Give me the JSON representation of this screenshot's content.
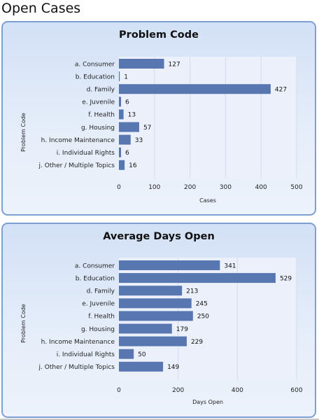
{
  "page": {
    "title": "Open Cases"
  },
  "colors": {
    "bar": "#5877b1",
    "plot_background": "#ebf0fa",
    "grid": "#d4dced",
    "panel_border": "#7d9fd4"
  },
  "chart_data": [
    {
      "type": "bar",
      "orientation": "horizontal",
      "title": "Problem Code",
      "xlabel": "Cases",
      "ylabel": "Problem Code",
      "categories": [
        "a. Consumer",
        "b. Education",
        "d. Family",
        "e. Juvenile",
        "f. Health",
        "g. Housing",
        "h. Income Maintenance",
        "i. Individual Rights",
        "j. Other / Multiple Topics"
      ],
      "values": [
        127,
        1,
        427,
        6,
        13,
        57,
        33,
        6,
        16
      ],
      "xlim": [
        0,
        500
      ],
      "xticks": [
        0,
        100,
        200,
        300,
        400,
        500
      ],
      "grid": true,
      "legend": false
    },
    {
      "type": "bar",
      "orientation": "horizontal",
      "title": "Average Days Open",
      "xlabel": "Days Open",
      "ylabel": "Problem Code",
      "categories": [
        "a. Consumer",
        "b. Education",
        "d. Family",
        "e. Juvenile",
        "f. Health",
        "g. Housing",
        "h. Income Maintenance",
        "i. Individual Rights",
        "j. Other / Multiple Topics"
      ],
      "values": [
        341,
        529,
        213,
        245,
        250,
        179,
        229,
        50,
        149
      ],
      "xlim": [
        0,
        600
      ],
      "xticks": [
        0,
        200,
        400,
        600
      ],
      "grid": true,
      "legend": false
    }
  ]
}
